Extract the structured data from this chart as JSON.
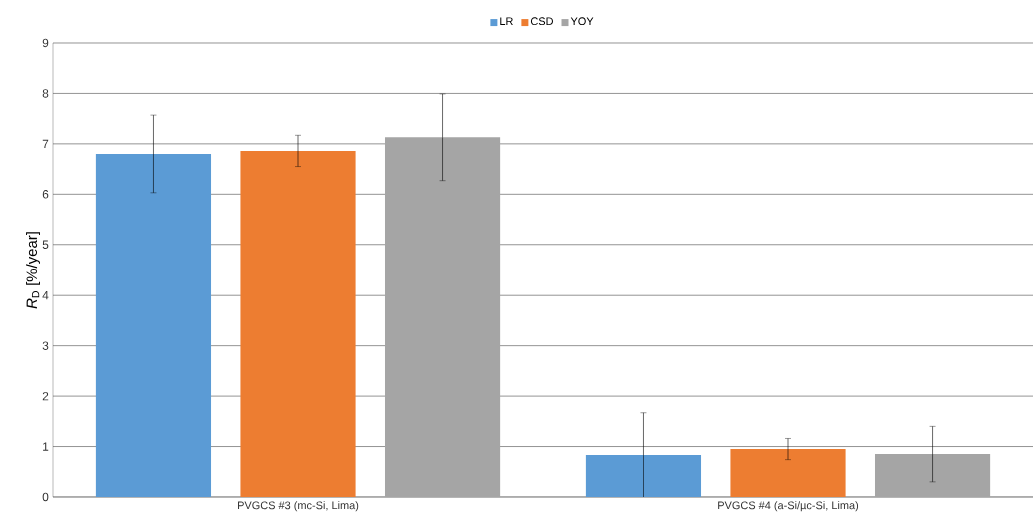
{
  "chart_data": {
    "type": "bar",
    "categories": [
      "PVGCS #3 (mc-Si, Lima)",
      "PVGCS #4  (a-Si/µc-Si, Lima)"
    ],
    "ylabel": "*R*$_{D}$ [%/year]",
    "series": [
      {
        "name": "LR",
        "color": "#5b9bd5",
        "values": [
          6.8,
          0.83
        ],
        "errors": [
          0.77,
          0.84
        ]
      },
      {
        "name": "CSD",
        "color": "#ed7d31",
        "values": [
          6.86,
          0.95
        ],
        "errors": [
          0.31,
          0.21
        ]
      },
      {
        "name": "YOY",
        "color": "#a5a5a5",
        "values": [
          7.13,
          0.85
        ],
        "errors": [
          0.86,
          0.55
        ]
      }
    ],
    "ylim": [
      0,
      9
    ],
    "yticks": [
      0,
      1,
      2,
      3,
      4,
      5,
      6,
      7,
      8,
      9
    ],
    "grid": "y",
    "legend": "top"
  }
}
